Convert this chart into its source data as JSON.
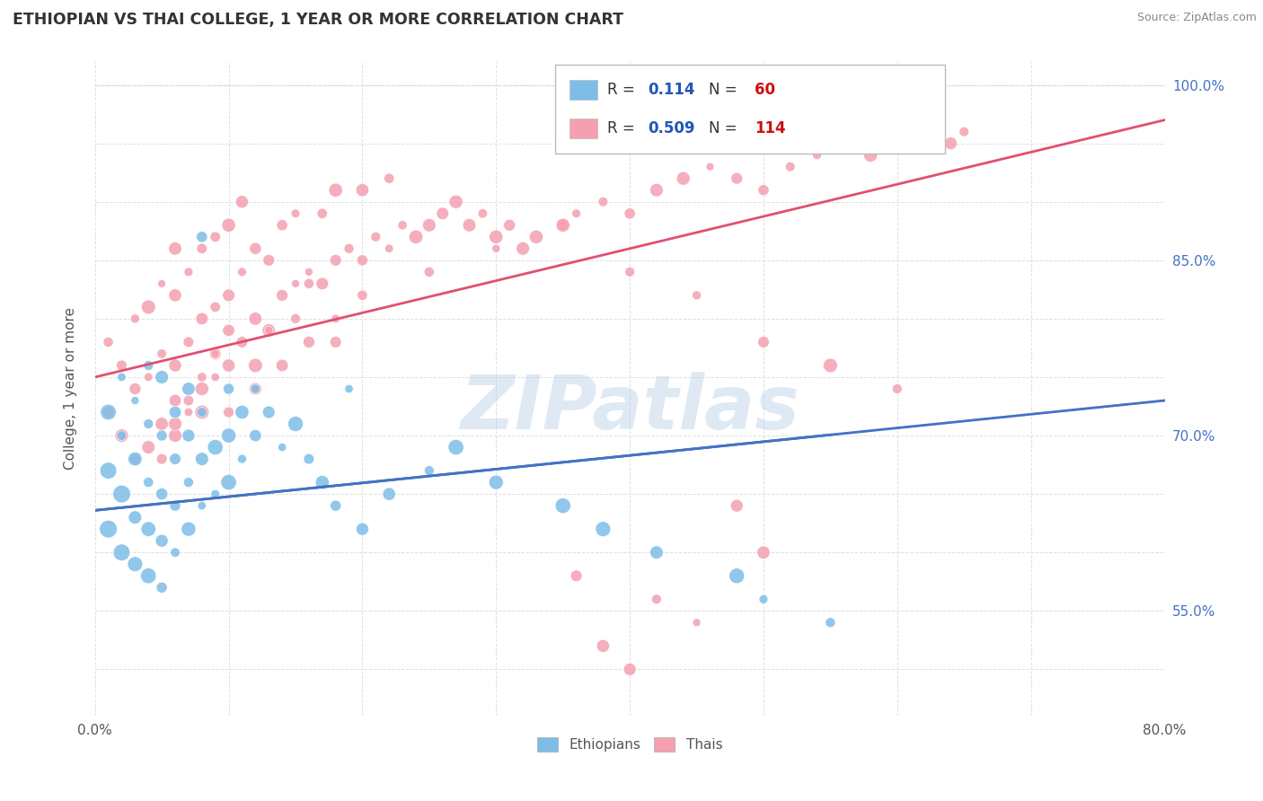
{
  "title": "ETHIOPIAN VS THAI COLLEGE, 1 YEAR OR MORE CORRELATION CHART",
  "source_text": "Source: ZipAtlas.com",
  "ylabel_text": "College, 1 year or more",
  "xlim": [
    0.0,
    0.8
  ],
  "ylim": [
    0.46,
    1.02
  ],
  "ethiopian_color": "#7dbde8",
  "thai_color": "#f4a0b0",
  "ethiopian_line_color": "#4472c4",
  "thai_line_color": "#e05070",
  "R_ethiopian": 0.114,
  "N_ethiopian": 60,
  "R_thai": 0.509,
  "N_thai": 114,
  "legend_R_color": "#2255bb",
  "legend_N_color": "#cc1111",
  "watermark": "ZIPatlas",
  "eth_line_x0": 0.0,
  "eth_line_y0": 0.636,
  "eth_line_x1": 0.8,
  "eth_line_y1": 0.73,
  "thai_line_x0": 0.0,
  "thai_line_y0": 0.75,
  "thai_line_x1": 0.8,
  "thai_line_y1": 0.97,
  "ethiopians_scatter_x": [
    0.01,
    0.01,
    0.01,
    0.02,
    0.02,
    0.02,
    0.02,
    0.03,
    0.03,
    0.03,
    0.03,
    0.04,
    0.04,
    0.04,
    0.04,
    0.04,
    0.05,
    0.05,
    0.05,
    0.05,
    0.05,
    0.06,
    0.06,
    0.06,
    0.06,
    0.07,
    0.07,
    0.07,
    0.07,
    0.08,
    0.08,
    0.08,
    0.09,
    0.09,
    0.1,
    0.1,
    0.1,
    0.11,
    0.11,
    0.12,
    0.12,
    0.13,
    0.14,
    0.15,
    0.16,
    0.17,
    0.18,
    0.2,
    0.22,
    0.25,
    0.27,
    0.3,
    0.35,
    0.38,
    0.42,
    0.48,
    0.5,
    0.55,
    0.19,
    0.08
  ],
  "ethiopians_scatter_y": [
    0.62,
    0.67,
    0.72,
    0.6,
    0.65,
    0.7,
    0.75,
    0.59,
    0.63,
    0.68,
    0.73,
    0.58,
    0.62,
    0.66,
    0.71,
    0.76,
    0.57,
    0.61,
    0.65,
    0.7,
    0.75,
    0.6,
    0.64,
    0.68,
    0.72,
    0.62,
    0.66,
    0.7,
    0.74,
    0.64,
    0.68,
    0.72,
    0.65,
    0.69,
    0.66,
    0.7,
    0.74,
    0.68,
    0.72,
    0.7,
    0.74,
    0.72,
    0.69,
    0.71,
    0.68,
    0.66,
    0.64,
    0.62,
    0.65,
    0.67,
    0.69,
    0.66,
    0.64,
    0.62,
    0.6,
    0.58,
    0.56,
    0.54,
    0.74,
    0.87
  ],
  "thais_scatter_x": [
    0.01,
    0.01,
    0.02,
    0.02,
    0.03,
    0.03,
    0.03,
    0.04,
    0.04,
    0.04,
    0.05,
    0.05,
    0.05,
    0.06,
    0.06,
    0.06,
    0.06,
    0.07,
    0.07,
    0.07,
    0.08,
    0.08,
    0.08,
    0.09,
    0.09,
    0.09,
    0.1,
    0.1,
    0.1,
    0.11,
    0.11,
    0.11,
    0.12,
    0.12,
    0.13,
    0.13,
    0.14,
    0.14,
    0.15,
    0.15,
    0.16,
    0.17,
    0.17,
    0.18,
    0.18,
    0.19,
    0.2,
    0.2,
    0.21,
    0.22,
    0.22,
    0.23,
    0.24,
    0.25,
    0.26,
    0.27,
    0.28,
    0.29,
    0.3,
    0.31,
    0.32,
    0.33,
    0.35,
    0.36,
    0.38,
    0.4,
    0.42,
    0.44,
    0.46,
    0.48,
    0.5,
    0.52,
    0.54,
    0.56,
    0.58,
    0.6,
    0.62,
    0.64,
    0.05,
    0.08,
    0.12,
    0.15,
    0.18,
    0.2,
    0.25,
    0.3,
    0.06,
    0.09,
    0.13,
    0.16,
    0.35,
    0.4,
    0.45,
    0.5,
    0.55,
    0.6,
    0.48,
    0.5,
    0.42,
    0.38,
    0.1,
    0.12,
    0.14,
    0.16,
    0.18,
    0.06,
    0.07,
    0.08,
    0.09,
    0.1,
    0.4,
    0.45,
    0.36,
    0.65
  ],
  "thais_scatter_y": [
    0.72,
    0.78,
    0.7,
    0.76,
    0.68,
    0.74,
    0.8,
    0.69,
    0.75,
    0.81,
    0.71,
    0.77,
    0.83,
    0.7,
    0.76,
    0.82,
    0.86,
    0.72,
    0.78,
    0.84,
    0.74,
    0.8,
    0.86,
    0.75,
    0.81,
    0.87,
    0.76,
    0.82,
    0.88,
    0.78,
    0.84,
    0.9,
    0.8,
    0.86,
    0.79,
    0.85,
    0.82,
    0.88,
    0.83,
    0.89,
    0.84,
    0.83,
    0.89,
    0.85,
    0.91,
    0.86,
    0.85,
    0.91,
    0.87,
    0.86,
    0.92,
    0.88,
    0.87,
    0.88,
    0.89,
    0.9,
    0.88,
    0.89,
    0.87,
    0.88,
    0.86,
    0.87,
    0.88,
    0.89,
    0.9,
    0.89,
    0.91,
    0.92,
    0.93,
    0.92,
    0.91,
    0.93,
    0.94,
    0.95,
    0.94,
    0.95,
    0.96,
    0.95,
    0.68,
    0.72,
    0.76,
    0.8,
    0.78,
    0.82,
    0.84,
    0.86,
    0.73,
    0.77,
    0.79,
    0.83,
    0.88,
    0.84,
    0.82,
    0.78,
    0.76,
    0.74,
    0.64,
    0.6,
    0.56,
    0.52,
    0.72,
    0.74,
    0.76,
    0.78,
    0.8,
    0.71,
    0.73,
    0.75,
    0.77,
    0.79,
    0.5,
    0.54,
    0.58,
    0.96
  ]
}
